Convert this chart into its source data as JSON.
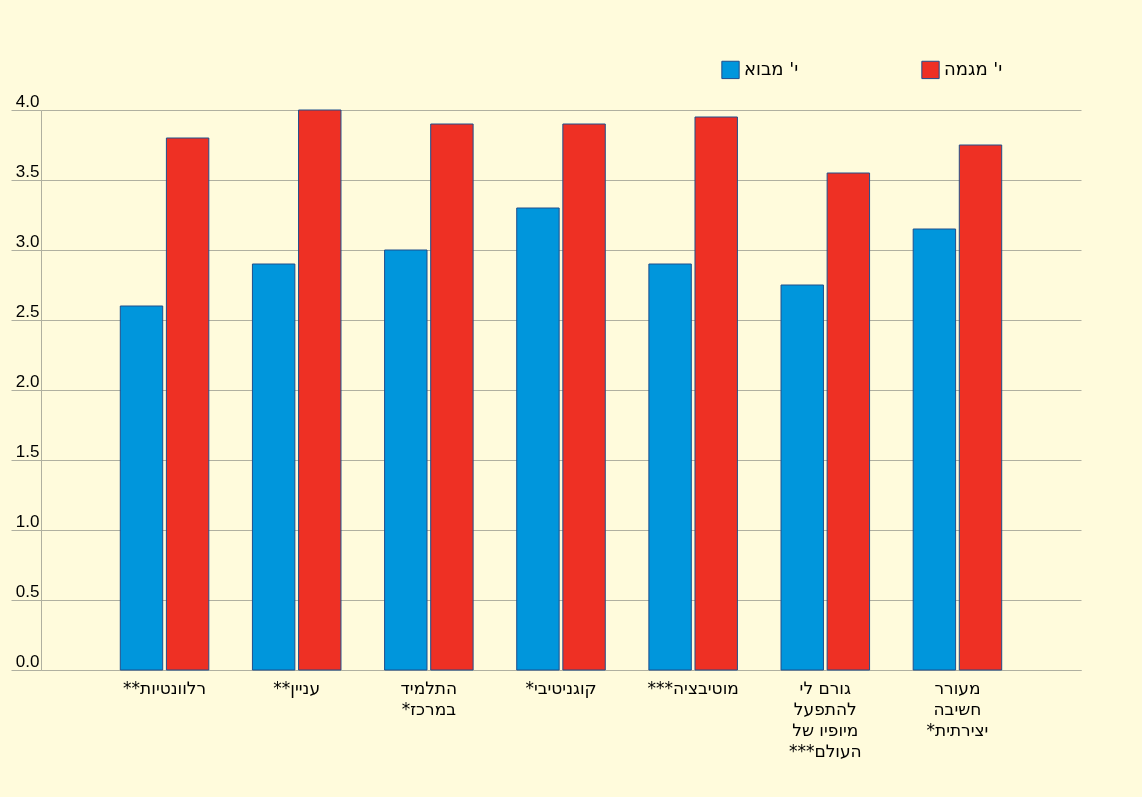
{
  "chart_data": {
    "type": "bar",
    "categories": [
      "רלוונטיות**",
      "עניין**",
      "התלמיד\nבמרכז*",
      "קוגניטיבי*",
      "מוטיבציה***",
      "גורם לי\nלהתפעל\nמיופיו של\nהעולם***",
      "מעורר\nחשיבה\nיצירתית*"
    ],
    "series": [
      {
        "name": "י' מבוא",
        "color": "#0096dc",
        "values": [
          2.6,
          2.9,
          3.0,
          3.3,
          2.9,
          2.75,
          3.15
        ]
      },
      {
        "name": "י' מגמה",
        "color": "#ee3024",
        "values": [
          3.8,
          4.0,
          3.9,
          3.9,
          3.95,
          3.55,
          3.75
        ]
      }
    ],
    "ylim": [
      0,
      4
    ],
    "yticks": [
      {
        "value": 0,
        "label": "0.0"
      },
      0.5,
      {
        "value": 1,
        "label": "1.0"
      },
      1.5,
      {
        "value": 2,
        "label": "2.0"
      },
      2.5,
      {
        "value": 3,
        "label": "3.0"
      },
      3.5,
      {
        "value": 4,
        "label": "4.0"
      }
    ],
    "grid": "y",
    "legend": "top right"
  }
}
